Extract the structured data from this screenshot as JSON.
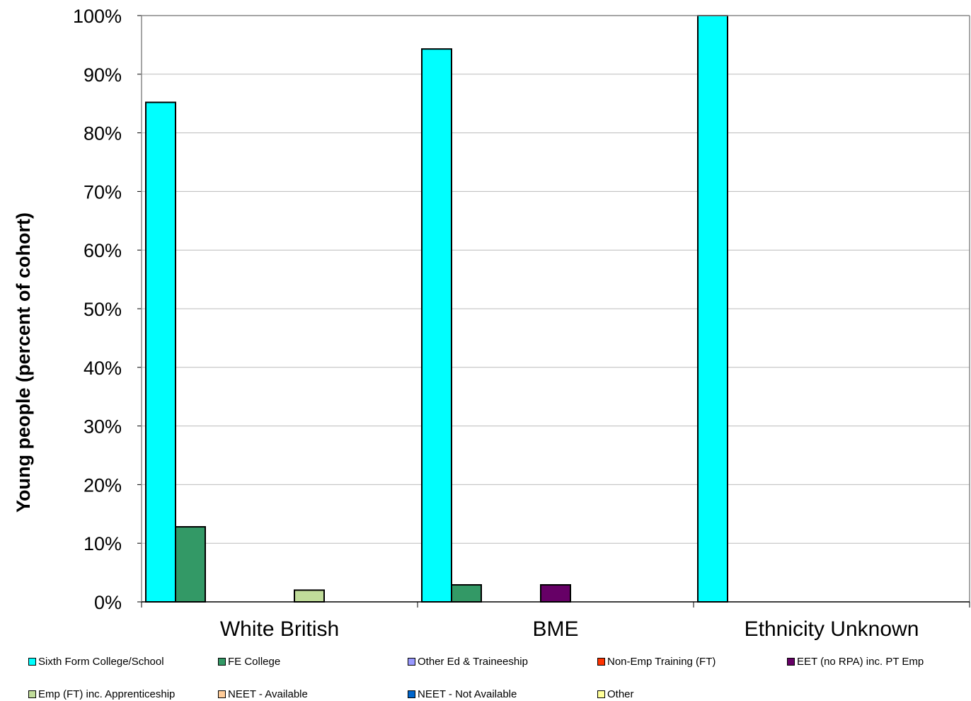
{
  "chart_data": {
    "type": "bar",
    "ylabel": "Young people (percent of cohort)",
    "ylim": [
      0,
      100
    ],
    "ytick_values": [
      0,
      10,
      20,
      30,
      40,
      50,
      60,
      70,
      80,
      90,
      100
    ],
    "ytick_labels": [
      "0%",
      "10%",
      "20%",
      "30%",
      "40%",
      "50%",
      "60%",
      "70%",
      "80%",
      "90%",
      "100%"
    ],
    "categories": [
      "White British",
      "BME",
      "Ethnicity Unknown"
    ],
    "grid": true,
    "legend_position": "bottom",
    "series": [
      {
        "name": "Sixth Form College/School",
        "color": "#00ffff",
        "values": [
          85.2,
          94.3,
          100
        ]
      },
      {
        "name": "FE College",
        "color": "#339966",
        "values": [
          12.8,
          2.9,
          0
        ]
      },
      {
        "name": "Other Ed & Traineeship",
        "color": "#9999ff",
        "values": [
          0,
          0,
          0
        ]
      },
      {
        "name": "Non-Emp Training (FT)",
        "color": "#ff3300",
        "values": [
          0,
          0,
          0
        ]
      },
      {
        "name": "EET (no RPA) inc. PT Emp",
        "color": "#660066",
        "values": [
          0,
          2.9,
          0
        ]
      },
      {
        "name": "Emp (FT) inc. Apprenticeship",
        "color": "#c0dc9a",
        "values": [
          2.0,
          0,
          0
        ]
      },
      {
        "name": "NEET - Available",
        "color": "#ffcc99",
        "values": [
          0,
          0,
          0
        ]
      },
      {
        "name": "NEET - Not Available",
        "color": "#0066cc",
        "values": [
          0,
          0,
          0
        ]
      },
      {
        "name": "Other",
        "color": "#ffff99",
        "values": [
          0,
          0,
          0
        ]
      }
    ]
  }
}
